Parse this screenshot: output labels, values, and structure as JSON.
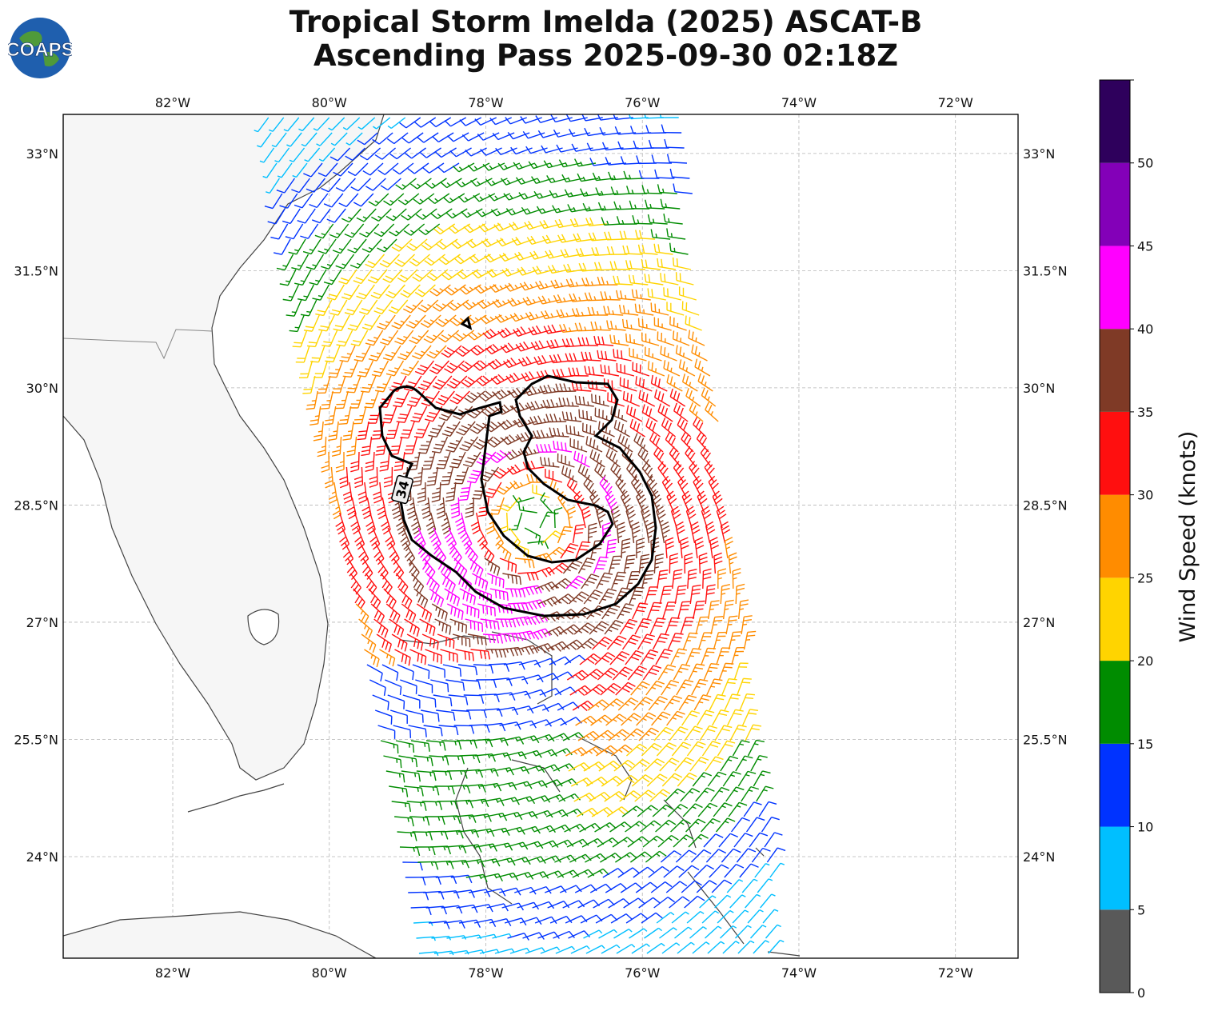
{
  "title": {
    "line1": "Tropical Storm Imelda (2025) ASCAT-B",
    "line2": "Ascending Pass 2025-09-30 02:18Z"
  },
  "logo": {
    "text": "COAPS",
    "icon": "globe-icon"
  },
  "map": {
    "lon_range": [
      -83.4,
      -71.2
    ],
    "lat_range": [
      22.7,
      33.5
    ],
    "lon_ticks": [
      {
        "value": -82,
        "label": "82°W"
      },
      {
        "value": -80,
        "label": "80°W"
      },
      {
        "value": -78,
        "label": "78°W"
      },
      {
        "value": -76,
        "label": "76°W"
      },
      {
        "value": -74,
        "label": "74°W"
      },
      {
        "value": -72,
        "label": "72°W"
      }
    ],
    "lat_ticks": [
      {
        "value": 33,
        "label": "33°N"
      },
      {
        "value": 31.5,
        "label": "31.5°N"
      },
      {
        "value": 30,
        "label": "30°N"
      },
      {
        "value": 28.5,
        "label": "28.5°N"
      },
      {
        "value": 27,
        "label": "27°N"
      },
      {
        "value": 25.5,
        "label": "25.5°N"
      },
      {
        "value": 24,
        "label": "24°N"
      }
    ],
    "grid": true,
    "storm_center": {
      "lon": -77.4,
      "lat": 28.3
    },
    "contour_label": "34"
  },
  "colorbar": {
    "label": "Wind Speed (knots)",
    "ticks": [
      "0",
      "5",
      "10",
      "15",
      "20",
      "25",
      "30",
      "35",
      "40",
      "45",
      "50"
    ],
    "bins": [
      {
        "min": 0,
        "max": 5,
        "color": "#595959"
      },
      {
        "min": 5,
        "max": 10,
        "color": "#00bfff"
      },
      {
        "min": 10,
        "max": 15,
        "color": "#0033ff"
      },
      {
        "min": 15,
        "max": 20,
        "color": "#008c00"
      },
      {
        "min": 20,
        "max": 25,
        "color": "#ffd400"
      },
      {
        "min": 25,
        "max": 30,
        "color": "#ff8c00"
      },
      {
        "min": 30,
        "max": 35,
        "color": "#ff0f0f"
      },
      {
        "min": 35,
        "max": 40,
        "color": "#7f3a26"
      },
      {
        "min": 40,
        "max": 45,
        "color": "#ff00ff"
      },
      {
        "min": 45,
        "max": 50,
        "color": "#8300b8"
      },
      {
        "min": 50,
        "max": 55,
        "color": "#2e005c"
      }
    ]
  }
}
